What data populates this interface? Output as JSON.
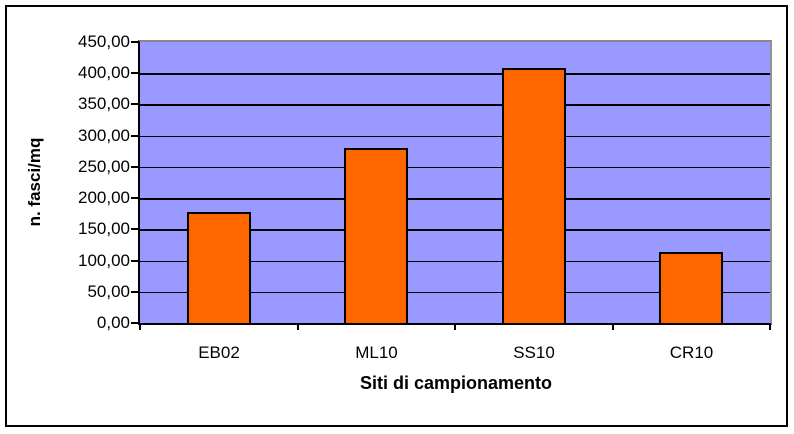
{
  "chart_data": {
    "type": "bar",
    "title": "",
    "categories": [
      "EB02",
      "ML10",
      "SS10",
      "CR10"
    ],
    "values": [
      178,
      280,
      409,
      114
    ],
    "xlabel": "Siti di campionamento",
    "ylabel": "n. fasci/mq",
    "ylim": [
      0,
      450
    ],
    "ytick_step": 50,
    "ytick_labels": [
      "0,00",
      "50,00",
      "100,00",
      "150,00",
      "200,00",
      "250,00",
      "300,00",
      "350,00",
      "400,00",
      "450,00"
    ],
    "number_format": "italian-decimal-comma",
    "grid": true,
    "legend": false,
    "layout_hints": {
      "bar_color": "#FF6600",
      "bar_border_color": "#000000",
      "plot_background": "#9999FF",
      "gridline_color": "#000000",
      "axis_color": "#000000",
      "plot_border_top_right": "#888888",
      "chart_border": "#000000",
      "chart_background": "#FFFFFF",
      "text_color": "#000000"
    }
  }
}
